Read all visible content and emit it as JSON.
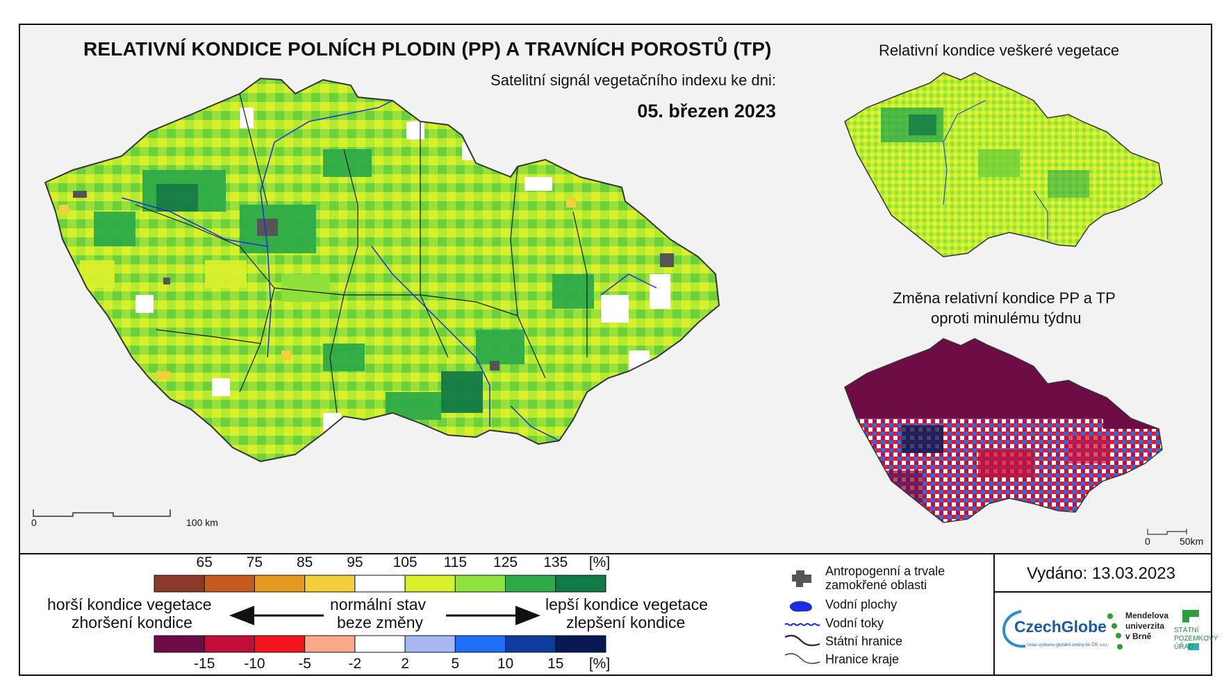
{
  "title": "RELATIVNÍ KONDICE POLNÍCH PLODIN (PP) A TRAVNÍCH POROSTŮ (TP)",
  "subtitle": "Satelitní signál vegetačního indexu ke dni:",
  "date": "05. březen 2023",
  "inset_top_title": "Relativní kondice veškeré vegetace",
  "inset_bottom_title_line1": "Změna relativní kondice PP a TP",
  "inset_bottom_title_line2": "oproti minulému týdnu",
  "main_scale": {
    "start": "0",
    "end": "100 km"
  },
  "inset_scale": {
    "start": "0",
    "end": "50km"
  },
  "condition_legend": {
    "labels": [
      "65",
      "75",
      "85",
      "95",
      "105",
      "115",
      "125",
      "135"
    ],
    "unit": "[%]",
    "colors": [
      "#8b3a2a",
      "#c45a1f",
      "#e39a1f",
      "#f4cf3c",
      "#ffffff",
      "#d8f02a",
      "#8de23b",
      "#2eab48",
      "#117a46"
    ]
  },
  "change_legend": {
    "labels": [
      "-15",
      "-10",
      "-5",
      "-2",
      "2",
      "5",
      "10",
      "15"
    ],
    "unit": "[%]",
    "colors": [
      "#6e0c45",
      "#c20e3a",
      "#f4141d",
      "#f9a88a",
      "#ffffff",
      "#a7b7ef",
      "#1e6ff5",
      "#0d3c9c",
      "#081a52"
    ]
  },
  "legend_texts": {
    "worse_line1": "horší kondice vegetace",
    "worse_line2": "zhoršení kondice",
    "normal_line1": "normální stav",
    "normal_line2": "beze změny",
    "better_line1": "lepší kondice vegetace",
    "better_line2": "zlepšení kondice"
  },
  "symbols": [
    {
      "icon": "urban-area-icon",
      "label_line1": "Antropogenní a trvale",
      "label_line2": "zamokřené oblasti"
    },
    {
      "icon": "water-body-icon",
      "label_line1": "Vodní plochy",
      "label_line2": ""
    },
    {
      "icon": "river-icon",
      "label_line1": "Vodní toky",
      "label_line2": ""
    },
    {
      "icon": "state-border-icon",
      "label_line1": "Státní hranice",
      "label_line2": ""
    },
    {
      "icon": "region-border-icon",
      "label_line1": "Hranice kraje",
      "label_line2": ""
    }
  ],
  "issued": "Vydáno: 13.03.2023",
  "logos": {
    "czechglobe": "CzechGlobe",
    "czechglobe_sub": "Ústav výzkumu globální změny AV ČR, v.v.i.",
    "mendel_line1": "Mendelova",
    "mendel_line2": "univerzita",
    "mendel_line3": "v Brně",
    "spu_line1": "STÁTNÍ",
    "spu_line2": "POZEMKOVÝ",
    "spu_line3": "ÚŘAD"
  }
}
